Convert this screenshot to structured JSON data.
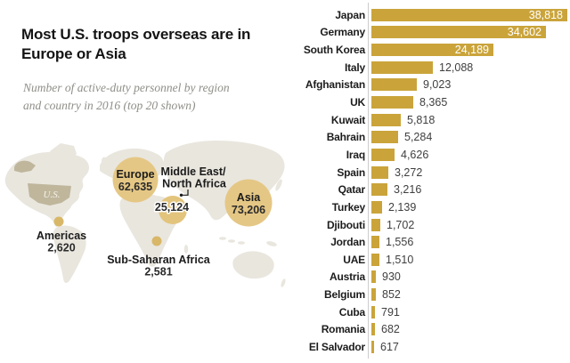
{
  "header": {
    "title_lines": [
      "Most U.S. troops overseas are in",
      "Europe or Asia"
    ],
    "subtitle_lines": [
      "Number of active-duty personnel by region",
      "and country in 2016 (top 20 shown)"
    ]
  },
  "map": {
    "us_label": "U.S.",
    "colors": {
      "land": "#e9e6de",
      "us_highlight": "#bfb69c",
      "bubble_large": "#e5c785",
      "bubble_small": "#d8b768",
      "label_text": "#1b1b1b"
    }
  },
  "chart_data": [
    {
      "type": "bar",
      "orientation": "horizontal",
      "title": "Most U.S. troops overseas are in Europe or Asia",
      "xlabel": "",
      "ylabel": "",
      "xlim": [
        0,
        40000
      ],
      "grid": false,
      "bar_color": "#caa43b",
      "inside_label_color": "#ffffff",
      "outside_label_color": "#3f3f3f",
      "categories": [
        "Japan",
        "Germany",
        "South Korea",
        "Italy",
        "Afghanistan",
        "UK",
        "Kuwait",
        "Bahrain",
        "Iraq",
        "Spain",
        "Qatar",
        "Turkey",
        "Djibouti",
        "Jordan",
        "UAE",
        "Austria",
        "Belgium",
        "Cuba",
        "Romania",
        "El Salvador"
      ],
      "values": [
        38818,
        34602,
        24189,
        12088,
        9023,
        8365,
        5818,
        5284,
        4626,
        3272,
        3216,
        2139,
        1702,
        1556,
        1510,
        930,
        852,
        791,
        682,
        617
      ],
      "value_labels": [
        "38,818",
        "34,602",
        "24,189",
        "12,088",
        "9,023",
        "8,365",
        "5,818",
        "5,284",
        "4,626",
        "3,272",
        "3,216",
        "2,139",
        "1,702",
        "1,556",
        "1,510",
        "930",
        "852",
        "791",
        "682",
        "617"
      ]
    },
    {
      "type": "bubble-map",
      "regions": [
        {
          "name": "Europe",
          "value": 62635,
          "value_label": "62,635"
        },
        {
          "name": "Asia",
          "value": 73206,
          "value_label": "73,206"
        },
        {
          "name": "Middle East/North Africa",
          "name_line1": "Middle East/",
          "name_line2": "North Africa",
          "value": 25124,
          "value_label": "25,124"
        },
        {
          "name": "Americas",
          "value": 2620,
          "value_label": "2,620"
        },
        {
          "name": "Sub-Saharan Africa",
          "value": 2581,
          "value_label": "2,581"
        }
      ]
    }
  ]
}
